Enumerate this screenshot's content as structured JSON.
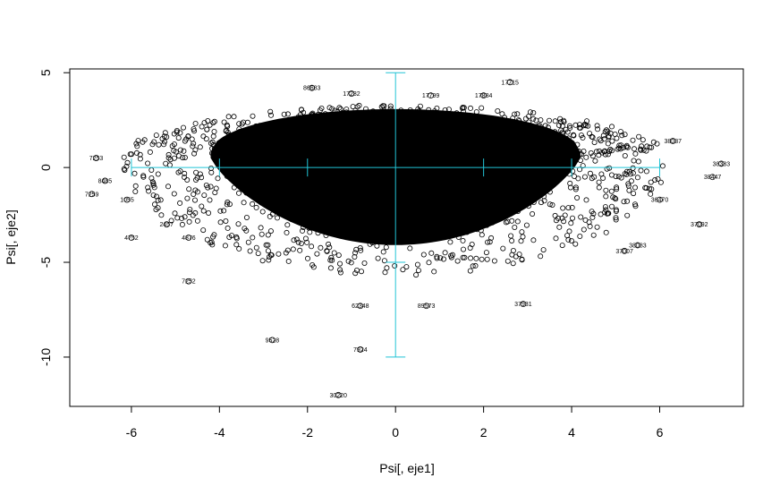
{
  "chart_data": {
    "type": "scatter",
    "title": "",
    "xlabel": "Psi[, eje1]",
    "ylabel": "Psi[, eje2]",
    "xlim": [
      -7.4,
      7.9
    ],
    "ylim": [
      -12.6,
      5.2
    ],
    "x_ticks": [
      -6,
      -4,
      -2,
      0,
      2,
      4,
      6
    ],
    "y_ticks": [
      -10,
      -5,
      0,
      5
    ],
    "grid": false,
    "point_color": "#000000",
    "overlay_color": "#22c4d6",
    "overlay_axes": {
      "horizontal_span": [
        -6,
        6
      ],
      "vertical_span": [
        -10,
        5
      ],
      "tick_marks_x": [
        -6,
        -4,
        -2,
        2,
        4,
        6
      ],
      "tick_marks_y": [
        -10,
        -5,
        5
      ]
    },
    "cloud": {
      "center": [
        0,
        0.5
      ],
      "x_halfwidth": 4.2,
      "y_upper": 2.9,
      "y_lower": -4.6
    },
    "labeled_points": [
      {
        "label": "17715",
        "x": 2.6,
        "y": 4.5
      },
      {
        "label": "86683",
        "x": -1.9,
        "y": 4.2
      },
      {
        "label": "17282",
        "x": -1.0,
        "y": 3.9
      },
      {
        "label": "17799",
        "x": 0.8,
        "y": 3.8
      },
      {
        "label": "17884",
        "x": 2.0,
        "y": 3.8
      },
      {
        "label": "7253",
        "x": -6.8,
        "y": 0.5
      },
      {
        "label": "8485",
        "x": -6.6,
        "y": -0.7
      },
      {
        "label": "7259",
        "x": -6.9,
        "y": -1.4
      },
      {
        "label": "1055",
        "x": -6.1,
        "y": -1.7
      },
      {
        "label": "4752",
        "x": -6.0,
        "y": -3.7
      },
      {
        "label": "4876",
        "x": -4.7,
        "y": -3.7
      },
      {
        "label": "2457",
        "x": -5.2,
        "y": -3.0
      },
      {
        "label": "7252",
        "x": -4.7,
        "y": -6.0
      },
      {
        "label": "9528",
        "x": -2.8,
        "y": -9.1
      },
      {
        "label": "7924",
        "x": -0.8,
        "y": -9.6
      },
      {
        "label": "30220",
        "x": -1.3,
        "y": -12.0
      },
      {
        "label": "62348",
        "x": -0.8,
        "y": -7.3
      },
      {
        "label": "89573",
        "x": 0.7,
        "y": -7.3
      },
      {
        "label": "37931",
        "x": 2.9,
        "y": -7.2
      },
      {
        "label": "38383",
        "x": 7.4,
        "y": 0.2
      },
      {
        "label": "38447",
        "x": 7.2,
        "y": -0.5
      },
      {
        "label": "37092",
        "x": 6.9,
        "y": -3.0
      },
      {
        "label": "36470",
        "x": 6.0,
        "y": -1.7
      },
      {
        "label": "37007",
        "x": 5.2,
        "y": -4.4
      },
      {
        "label": "38083",
        "x": 5.5,
        "y": -4.1
      },
      {
        "label": "38087",
        "x": 6.3,
        "y": 1.4
      }
    ]
  }
}
